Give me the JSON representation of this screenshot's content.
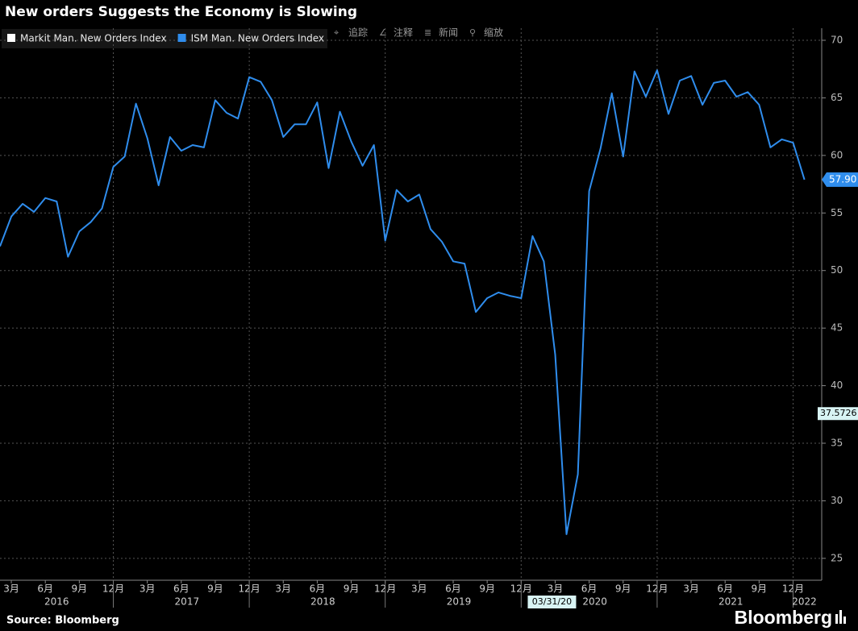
{
  "chart_data": {
    "type": "line",
    "title": "New orders Suggests the Economy is Slowing",
    "x": [
      "2016-02",
      "2016-03",
      "2016-04",
      "2016-05",
      "2016-06",
      "2016-07",
      "2016-08",
      "2016-09",
      "2016-10",
      "2016-11",
      "2016-12",
      "2017-01",
      "2017-02",
      "2017-03",
      "2017-04",
      "2017-05",
      "2017-06",
      "2017-07",
      "2017-08",
      "2017-09",
      "2017-10",
      "2017-11",
      "2017-12",
      "2018-01",
      "2018-02",
      "2018-03",
      "2018-04",
      "2018-05",
      "2018-06",
      "2018-07",
      "2018-08",
      "2018-09",
      "2018-10",
      "2018-11",
      "2018-12",
      "2019-01",
      "2019-02",
      "2019-03",
      "2019-04",
      "2019-05",
      "2019-06",
      "2019-07",
      "2019-08",
      "2019-09",
      "2019-10",
      "2019-11",
      "2019-12",
      "2020-01",
      "2020-02",
      "2020-03",
      "2020-04",
      "2020-05",
      "2020-06",
      "2020-07",
      "2020-08",
      "2020-09",
      "2020-10",
      "2020-11",
      "2020-12",
      "2021-01",
      "2021-02",
      "2021-03",
      "2021-04",
      "2021-05",
      "2021-06",
      "2021-07",
      "2021-08",
      "2021-09",
      "2021-10",
      "2021-11",
      "2021-12",
      "2022-01"
    ],
    "series": [
      {
        "name": "Markit Man. New Orders Index",
        "color": "#ffffff",
        "values": [
          null,
          null,
          null,
          null,
          null,
          null,
          null,
          null,
          null,
          null,
          null,
          null,
          null,
          null,
          null,
          null,
          null,
          null,
          null,
          null,
          null,
          null,
          null,
          null,
          null,
          null,
          null,
          null,
          null,
          null,
          null,
          null,
          null,
          null,
          null,
          null,
          null,
          null,
          null,
          null,
          null,
          null,
          null,
          null,
          null,
          null,
          null,
          null,
          null,
          null,
          null,
          null,
          null,
          null,
          null,
          null,
          null,
          null,
          null,
          null,
          null,
          null,
          null,
          null,
          null,
          null,
          null,
          null,
          null,
          null,
          null,
          null
        ]
      },
      {
        "name": "ISM Man. New Orders Index",
        "color": "#2f8ded",
        "values": [
          52.1,
          54.7,
          55.8,
          55.1,
          56.3,
          56.0,
          51.2,
          53.4,
          54.2,
          55.4,
          59.0,
          59.9,
          64.5,
          61.5,
          57.4,
          61.6,
          60.4,
          60.9,
          60.7,
          64.8,
          63.7,
          63.2,
          66.8,
          66.4,
          64.8,
          61.6,
          62.7,
          62.7,
          64.6,
          58.9,
          63.8,
          61.2,
          59.1,
          60.9,
          52.6,
          57.0,
          56.0,
          56.6,
          53.6,
          52.5,
          50.8,
          50.6,
          46.4,
          47.6,
          48.1,
          47.8,
          47.6,
          53.0,
          50.8,
          42.7,
          27.1,
          32.3,
          56.9,
          60.6,
          65.4,
          59.9,
          67.3,
          65.1,
          67.4,
          63.6,
          66.5,
          66.9,
          64.4,
          66.3,
          66.5,
          65.1,
          65.5,
          64.4,
          60.7,
          61.4,
          61.1,
          57.9
        ]
      }
    ],
    "ylim": [
      23.1,
      71.05
    ],
    "yticks": [
      25,
      30,
      35,
      40,
      45,
      50,
      55,
      60,
      65,
      70
    ],
    "xticks": [
      {
        "value": "2016-03",
        "label": "3月"
      },
      {
        "value": "2016-06",
        "label": "6月"
      },
      {
        "value": "2016-09",
        "label": "9月"
      },
      {
        "value": "2016-12",
        "label": "12月"
      },
      {
        "value": "2017-03",
        "label": "3月"
      },
      {
        "value": "2017-06",
        "label": "6月"
      },
      {
        "value": "2017-09",
        "label": "9月"
      },
      {
        "value": "2017-12",
        "label": "12月"
      },
      {
        "value": "2018-03",
        "label": "3月"
      },
      {
        "value": "2018-06",
        "label": "6月"
      },
      {
        "value": "2018-09",
        "label": "9月"
      },
      {
        "value": "2018-12",
        "label": "12月"
      },
      {
        "value": "2019-03",
        "label": "3月"
      },
      {
        "value": "2019-06",
        "label": "6月"
      },
      {
        "value": "2019-09",
        "label": "9月"
      },
      {
        "value": "2019-12",
        "label": "12月"
      },
      {
        "value": "2020-03",
        "label": "3月"
      },
      {
        "value": "2020-06",
        "label": "6月"
      },
      {
        "value": "2020-09",
        "label": "9月"
      },
      {
        "value": "2020-12",
        "label": "12月"
      },
      {
        "value": "2021-03",
        "label": "3月"
      },
      {
        "value": "2021-06",
        "label": "6月"
      },
      {
        "value": "2021-09",
        "label": "9月"
      },
      {
        "value": "2021-12",
        "label": "12月"
      }
    ],
    "year_labels": [
      "2016",
      "2017",
      "2018",
      "2019",
      "2020",
      "2021",
      "2022"
    ],
    "grid": true,
    "last_value_label": {
      "value": 57.9,
      "label": "57.90"
    },
    "crosshair": {
      "x": {
        "value": "2020-03",
        "label": "03/31/20"
      },
      "y": {
        "value": 37.5726,
        "label": "37.5726"
      }
    },
    "toolbar": [
      "追踪",
      "注释",
      "新闻",
      "缩放"
    ],
    "source": "Source: Bloomberg",
    "logo": "Bloomberg"
  }
}
